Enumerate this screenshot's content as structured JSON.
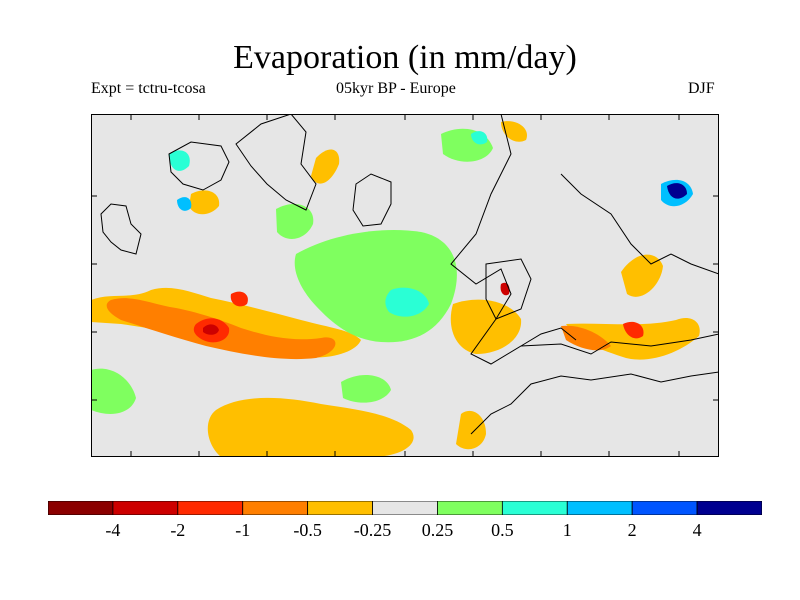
{
  "title": "Evaporation (in mm/day)",
  "subtitle": {
    "experiment": "Expt = tctru-tcosa",
    "period_region": "05kyr BP - Europe",
    "season": "DJF"
  },
  "map": {
    "background_color": "#e6e6e6",
    "coastline_color": "#000000"
  },
  "legend": {
    "colors": [
      "#8b0000",
      "#cd0000",
      "#ff2a00",
      "#ff7f00",
      "#ffbf00",
      "#e6e6e6",
      "#7fff5f",
      "#2affd5",
      "#00bfff",
      "#0055ff",
      "#000090"
    ],
    "labels": [
      "-4",
      "-2",
      "-1",
      "-0.5",
      "-0.25",
      "0.25",
      "0.5",
      "1",
      "2",
      "4"
    ]
  }
}
